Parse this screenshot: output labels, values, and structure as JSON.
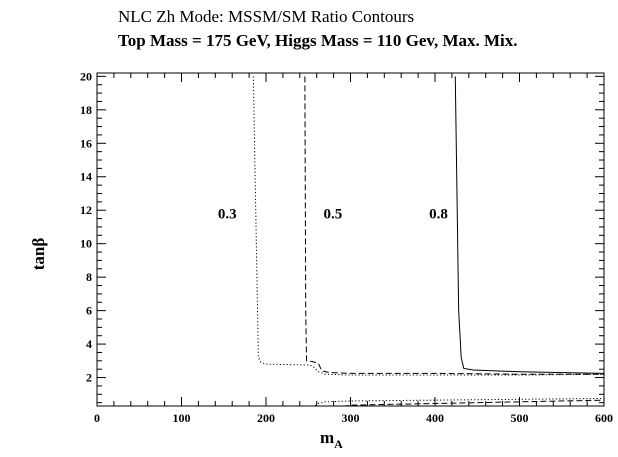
{
  "chart_data": {
    "type": "line",
    "title": "NLC Zh Mode: MSSM/SM Ratio Contours",
    "subtitle": "Top Mass = 175 GeV, Higgs Mass = 110 Gev, Max. Mix.",
    "xlabel": "m",
    "xlabel_subscript": "A",
    "ylabel": "tanβ",
    "xlim": [
      0,
      600
    ],
    "ylim": [
      0.3,
      20.2
    ],
    "x_ticks": [
      0,
      100,
      200,
      300,
      400,
      500,
      600
    ],
    "y_ticks": [
      2,
      4,
      6,
      8,
      10,
      12,
      14,
      16,
      18,
      20
    ],
    "grid": false,
    "legend": "none",
    "series": [
      {
        "name": "0.3",
        "style": "dotted",
        "upper": {
          "x": [
            185,
            190,
            191,
            194,
            200,
            250,
            255,
            262,
            270,
            300,
            400,
            500,
            600
          ],
          "y": [
            20,
            6,
            3.2,
            2.9,
            2.8,
            2.75,
            2.7,
            2.35,
            2.2,
            2.15,
            2.15,
            2.15,
            2.2
          ]
        },
        "lower": {
          "x": [
            255,
            262,
            270,
            300,
            400,
            500,
            600
          ],
          "y": [
            0.2,
            0.45,
            0.55,
            0.6,
            0.65,
            0.7,
            0.75
          ]
        }
      },
      {
        "name": "0.5",
        "style": "dashed",
        "upper": {
          "x": [
            246,
            247,
            248,
            255,
            262,
            266,
            275,
            300,
            400,
            500,
            600
          ],
          "y": [
            20,
            6,
            3.0,
            2.95,
            2.85,
            2.4,
            2.3,
            2.25,
            2.25,
            2.2,
            2.2
          ]
        },
        "lower": {
          "x": [
            280,
            300,
            400,
            500,
            600
          ],
          "y": [
            0.2,
            0.35,
            0.45,
            0.55,
            0.65
          ]
        }
      },
      {
        "name": "0.8",
        "style": "solid",
        "upper": {
          "x": [
            424,
            428,
            431,
            434,
            445,
            500,
            600
          ],
          "y": [
            20,
            6,
            3.2,
            2.55,
            2.45,
            2.35,
            2.25
          ]
        },
        "lower": null
      }
    ],
    "annotations": [
      {
        "text": "0.3",
        "x": 143,
        "y": 11.5
      },
      {
        "text": "0.5",
        "x": 268,
        "y": 11.5
      },
      {
        "text": "0.8",
        "x": 393,
        "y": 11.5
      }
    ]
  }
}
